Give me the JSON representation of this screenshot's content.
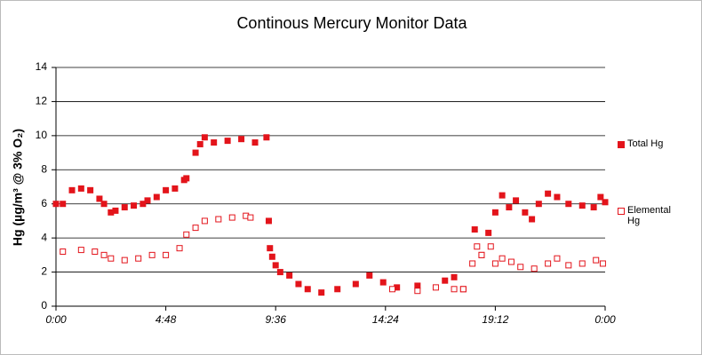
{
  "chart_data": {
    "type": "scatter",
    "title": "Continous  Mercury Monitor Data",
    "y_label": "Hg (µg/m³ @ 3% O₂)",
    "xlim": [
      0,
      24
    ],
    "xticks": [
      {
        "value": 0,
        "label": "0:00"
      },
      {
        "value": 4.8,
        "label": "4:48"
      },
      {
        "value": 9.6,
        "label": "9:36"
      },
      {
        "value": 14.4,
        "label": "14:24"
      },
      {
        "value": 19.2,
        "label": "19:12"
      },
      {
        "value": 24,
        "label": "0:00"
      }
    ],
    "ylim": [
      0,
      14
    ],
    "yticks": [
      0,
      2,
      4,
      6,
      8,
      10,
      12,
      14
    ],
    "grid": true,
    "series": [
      {
        "name": "Total Hg",
        "color": "#e3141b",
        "marker": "filled",
        "x": [
          0.0,
          0.3,
          0.7,
          1.1,
          1.5,
          1.9,
          2.1,
          2.4,
          2.6,
          3.0,
          3.4,
          3.8,
          4.0,
          4.4,
          4.8,
          5.2,
          5.6,
          5.7,
          6.1,
          6.3,
          6.5,
          6.9,
          7.5,
          8.1,
          8.7,
          9.2,
          9.3,
          9.35,
          9.45,
          9.6,
          9.8,
          10.2,
          10.6,
          11.0,
          11.6,
          12.3,
          13.1,
          13.7,
          14.3,
          14.9,
          15.8,
          17.0,
          17.4,
          17.8,
          18.3,
          18.6,
          18.9,
          19.2,
          19.5,
          19.8,
          20.1,
          20.5,
          20.8,
          21.1,
          21.5,
          21.9,
          22.4,
          23.0,
          23.5,
          23.8,
          24.0
        ],
        "values": [
          6.0,
          6.0,
          6.8,
          6.9,
          6.8,
          6.3,
          6.0,
          5.5,
          5.6,
          5.8,
          5.9,
          6.0,
          6.2,
          6.4,
          6.8,
          6.9,
          7.4,
          7.5,
          9.0,
          9.5,
          9.9,
          9.6,
          9.7,
          9.8,
          9.6,
          9.9,
          5.0,
          3.4,
          2.9,
          2.4,
          2.0,
          1.8,
          1.3,
          1.0,
          0.8,
          1.0,
          1.3,
          1.8,
          1.4,
          1.1,
          1.2,
          1.5,
          1.7,
          1.0,
          4.5,
          3.0,
          4.3,
          5.5,
          6.5,
          5.8,
          6.2,
          5.5,
          5.1,
          6.0,
          6.6,
          6.4,
          6.0,
          5.9,
          5.8,
          6.4,
          6.1
        ]
      },
      {
        "name": "Elemental Hg",
        "color": "#e3141b",
        "marker": "open",
        "x": [
          0.3,
          1.1,
          1.7,
          2.1,
          2.4,
          3.0,
          3.6,
          4.2,
          4.8,
          5.4,
          5.7,
          6.1,
          6.5,
          7.1,
          7.7,
          8.3,
          8.5,
          14.7,
          15.8,
          16.6,
          17.4,
          17.8,
          18.2,
          18.4,
          18.6,
          19.0,
          19.2,
          19.5,
          19.9,
          20.3,
          20.9,
          21.5,
          21.9,
          22.4,
          23.0,
          23.6,
          23.9
        ],
        "values": [
          3.2,
          3.3,
          3.2,
          3.0,
          2.8,
          2.7,
          2.8,
          3.0,
          3.0,
          3.4,
          4.2,
          4.6,
          5.0,
          5.1,
          5.2,
          5.3,
          5.2,
          1.0,
          0.9,
          1.1,
          1.0,
          1.0,
          2.5,
          3.5,
          3.0,
          3.5,
          2.5,
          2.8,
          2.6,
          2.3,
          2.2,
          2.5,
          2.8,
          2.4,
          2.5,
          2.7,
          2.5
        ]
      }
    ]
  }
}
